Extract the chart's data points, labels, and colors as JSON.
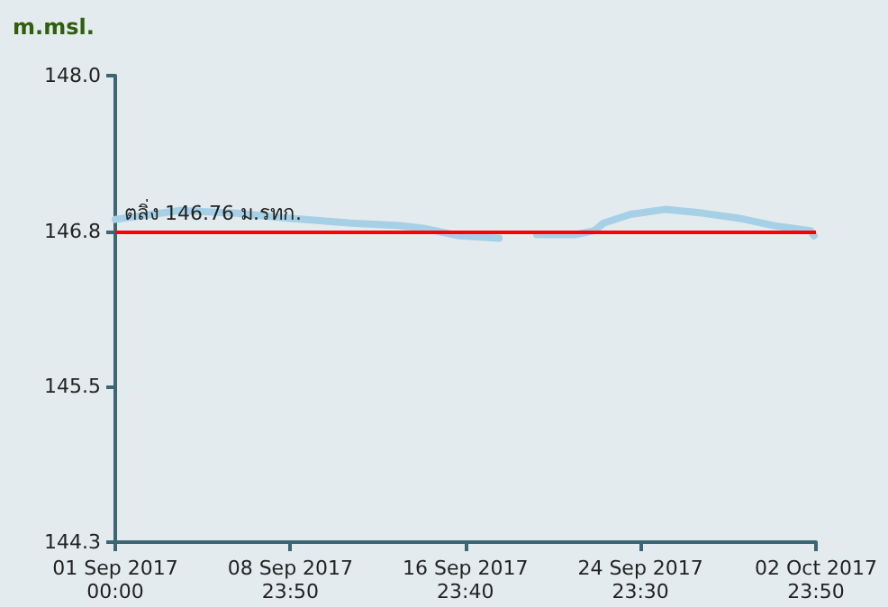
{
  "chart_data": {
    "type": "line",
    "ylabel": "m.msl.",
    "x": [
      "2017-09-01T00:00",
      "2017-09-03T23:00",
      "2017-09-06T10:20",
      "2017-09-08T21:20",
      "2017-09-11T18:30",
      "2017-09-13T23:50",
      "2017-09-15T01:30",
      "2017-09-15T21:10",
      "2017-09-16T17:00",
      "2017-09-18T12:30",
      "2017-09-19T12:00",
      "2017-09-20T05:50",
      "2017-09-22T01:10",
      "2017-09-22T21:00",
      "2017-09-23T07:00",
      "2017-09-24T12:30",
      "2017-09-26T03:50",
      "2017-09-27T19:20",
      "2017-09-29T10:50",
      "2017-10-01T02:20",
      "2017-10-02T17:50",
      "2017-10-02T21:40"
    ],
    "series": [
      {
        "color": "#a6d0e6",
        "values": [
          146.86,
          146.93,
          146.91,
          146.87,
          146.83,
          146.81,
          146.79,
          146.76,
          146.73,
          146.71,
          null,
          146.74,
          146.74,
          146.77,
          146.83,
          146.9,
          146.94,
          146.91,
          146.87,
          146.81,
          146.77,
          146.73
        ]
      }
    ],
    "xlim": [
      "2017-09-01T00:00",
      "2017-10-02T23:50"
    ],
    "xticks": [
      {
        "value": "2017-09-01T00:00",
        "label": "01 Sep 2017\n00:00"
      },
      {
        "value": "2017-09-08T23:50",
        "label": "08 Sep 2017\n23:50"
      },
      {
        "value": "2017-09-16T23:40",
        "label": "16 Sep 2017\n23:40"
      },
      {
        "value": "2017-09-24T23:30",
        "label": "24 Sep 2017\n23:30"
      },
      {
        "value": "2017-10-02T23:50",
        "label": "02 Oct 2017\n23:50"
      }
    ],
    "ylim": [
      144.3,
      148
    ],
    "yticks": [
      144.3,
      {
        "value": 145.533,
        "label": "145.5"
      },
      {
        "value": 146.767,
        "label": "146.8"
      },
      {
        "value": 148,
        "label": "148.0"
      }
    ],
    "ref_lines": [
      {
        "axis": "y",
        "value": 146.76,
        "label": "ตลิ่ง 146.76 ม.รทก.",
        "color": "#ff0000"
      }
    ],
    "grid": false,
    "marker": "none",
    "line_style": "solid"
  }
}
